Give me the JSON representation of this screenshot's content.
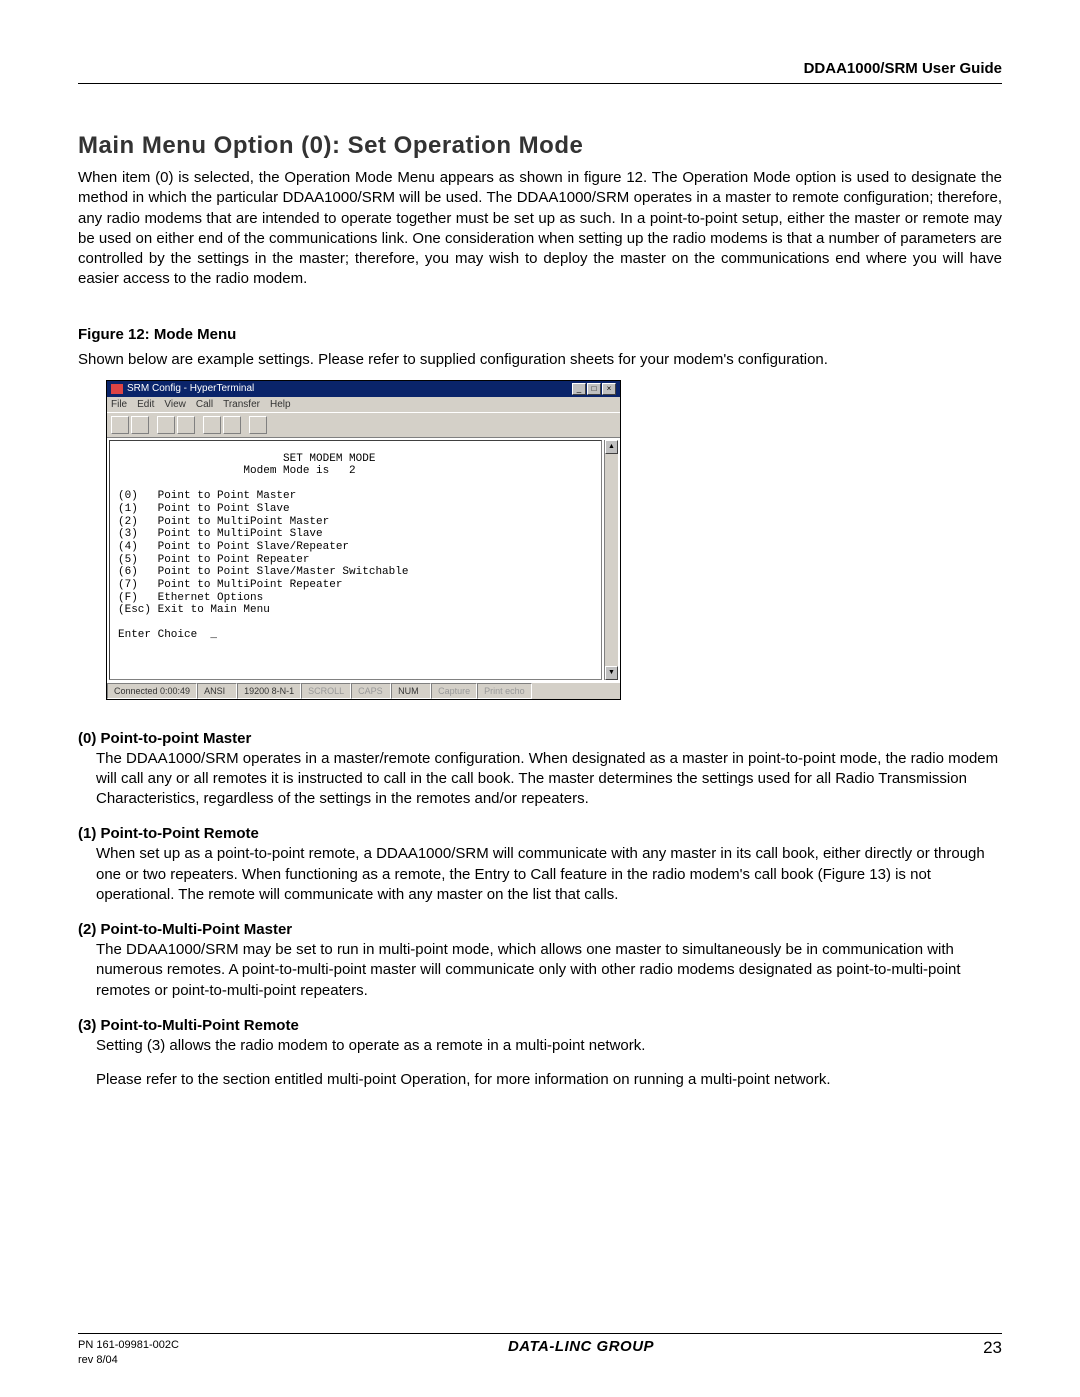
{
  "header": {
    "doc_title": "DDAA1000/SRM User Guide"
  },
  "title": "Main Menu Option (0): Set Operation Mode",
  "intro": "When item (0) is selected, the Operation Mode Menu appears as shown in figure 12. The Operation Mode option is used to designate the method in which the particular DDAA1000/SRM will be used. The DDAA1000/SRM operates in a master to remote configuration; therefore, any radio modems that are intended to operate together must be set up as such. In a point-to-point setup, either the master or remote may be used on either end of the communications link. One consideration when setting up the radio modems is that a number of parameters are controlled by the settings in the master; therefore, you may wish to deploy the master on the communications end where you will have easier access to the radio modem.",
  "figure": {
    "label": "Figure 12:  Mode Menu",
    "caption": "Shown below are example settings. Please refer to supplied configuration sheets for your modem's configuration."
  },
  "terminal": {
    "title": "SRM Config - HyperTerminal",
    "menu": [
      "File",
      "Edit",
      "View",
      "Call",
      "Transfer",
      "Help"
    ],
    "heading": "SET MODEM MODE",
    "mode_line": "Modem Mode is   2",
    "options": [
      "(0)   Point to Point Master",
      "(1)   Point to Point Slave",
      "(2)   Point to MultiPoint Master",
      "(3)   Point to MultiPoint Slave",
      "(4)   Point to Point Slave/Repeater",
      "(5)   Point to Point Repeater",
      "(6)   Point to Point Slave/Master Switchable",
      "(7)   Point to MultiPoint Repeater",
      "(F)   Ethernet Options",
      "(Esc) Exit to Main Menu"
    ],
    "prompt": "Enter Choice  _",
    "status": {
      "conn": "Connected 0:00:49",
      "emul": "ANSI",
      "baud": "19200 8-N-1",
      "scroll": "SCROLL",
      "caps": "CAPS",
      "num": "NUM",
      "capture": "Capture",
      "printecho": "Print echo"
    }
  },
  "opts": [
    {
      "title": "(0) Point-to-point Master",
      "body": "The DDAA1000/SRM operates in a master/remote configuration. When designated as a master in point-to-point mode, the radio modem will call any or all remotes it is instructed to call in the call book. The master determines the settings used for all Radio Transmission Characteristics, regardless of the settings in the remotes and/or repeaters."
    },
    {
      "title": "(1) Point-to-Point Remote",
      "body": "When set up as a point-to-point remote, a DDAA1000/SRM will communicate with any master in its call book, either directly or through one or two repeaters. When functioning as a remote, the Entry to Call feature in the radio modem's call book (Figure 13) is not operational. The remote will communicate with any master on the list that calls."
    },
    {
      "title": "(2) Point-to-Multi-Point Master",
      "body": "The DDAA1000/SRM may be set to run in multi-point mode, which allows one master to simultaneously be in communication with numerous remotes. A point-to-multi-point master will communicate only with other radio modems designated as point-to-multi-point remotes or point-to-multi-point repeaters."
    },
    {
      "title": "(3) Point-to-Multi-Point Remote",
      "body": "Setting (3) allows the radio modem to operate as a remote in a multi-point network.",
      "extra": "Please refer to the section entitled multi-point Operation, for more information on running a multi-point network."
    }
  ],
  "footer": {
    "pn": "PN 161-09981-002C",
    "rev": "rev  8/04",
    "center": "DATA-LINC GROUP",
    "page": "23"
  }
}
